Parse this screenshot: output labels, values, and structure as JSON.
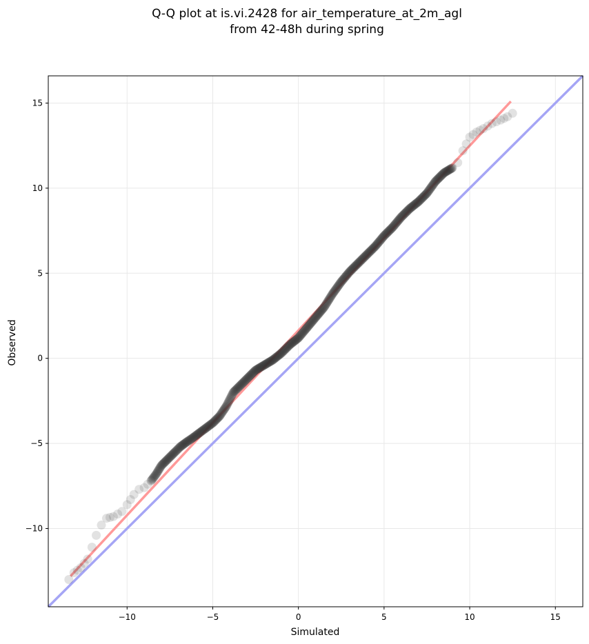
{
  "chart_data": {
    "type": "scatter",
    "title": "Q-Q plot at is.vi.2428 for air_temperature_at_2m_agl",
    "subtitle": "from 42-48h during spring",
    "xlabel": "Simulated",
    "ylabel": "Observed",
    "xlim": [
      -14.6,
      16.6
    ],
    "ylim": [
      -14.6,
      16.6
    ],
    "xticks": [
      -10,
      -5,
      0,
      5,
      10,
      15
    ],
    "yticks": [
      -10,
      -5,
      0,
      5,
      10,
      15
    ],
    "xtick_labels": [
      "−10",
      "−5",
      "0",
      "5",
      "10",
      "15"
    ],
    "ytick_labels": [
      "−10",
      "−5",
      "0",
      "5",
      "10",
      "15"
    ],
    "grid": true,
    "colors": {
      "points": "#333333",
      "fit_line": "#ff9999",
      "identity_line": "#a5a5f5",
      "grid": "#e8e8e8"
    },
    "fit_line": {
      "x": [
        -13.3,
        12.4
      ],
      "y": [
        -12.8,
        15.1
      ]
    },
    "identity_line": {
      "x": [
        -14.6,
        16.6
      ],
      "y": [
        -14.6,
        16.6
      ]
    },
    "quantile_anchors": {
      "x": [
        -13.4,
        -13.1,
        -12.7,
        -12.3,
        -11.8,
        -11.5,
        -11.2,
        -10.8,
        -10.3,
        -10.0,
        -9.6,
        -9.3,
        -9.0,
        -8.6,
        -8.3,
        -8.0,
        -7.6,
        -7.2,
        -6.9,
        -6.5,
        -6.2,
        -5.8,
        -5.4,
        -5.0,
        -4.6,
        -4.2,
        -3.8,
        -3.4,
        -3.0,
        -2.5,
        -2.0,
        -1.5,
        -1.0,
        -0.5,
        0.0,
        0.5,
        1.0,
        1.5,
        2.0,
        2.5,
        3.0,
        3.5,
        4.0,
        4.5,
        5.0,
        5.5,
        6.0,
        6.5,
        7.0,
        7.5,
        8.0,
        8.5,
        9.0,
        9.3,
        9.6,
        10.0,
        10.4,
        10.8,
        11.3,
        11.8,
        12.2,
        12.5
      ],
      "y": [
        -13.0,
        -12.6,
        -12.3,
        -11.8,
        -10.4,
        -9.8,
        -9.4,
        -9.3,
        -9.0,
        -8.6,
        -8.0,
        -7.7,
        -7.6,
        -7.2,
        -6.8,
        -6.3,
        -5.9,
        -5.5,
        -5.2,
        -4.9,
        -4.7,
        -4.4,
        -4.1,
        -3.8,
        -3.4,
        -2.8,
        -2.0,
        -1.6,
        -1.2,
        -0.7,
        -0.4,
        -0.1,
        0.3,
        0.8,
        1.2,
        1.8,
        2.4,
        3.0,
        3.8,
        4.5,
        5.1,
        5.6,
        6.1,
        6.6,
        7.2,
        7.7,
        8.3,
        8.8,
        9.2,
        9.7,
        10.4,
        10.9,
        11.2,
        11.5,
        12.2,
        13.0,
        13.3,
        13.5,
        13.8,
        14.0,
        14.2,
        14.4
      ]
    }
  }
}
